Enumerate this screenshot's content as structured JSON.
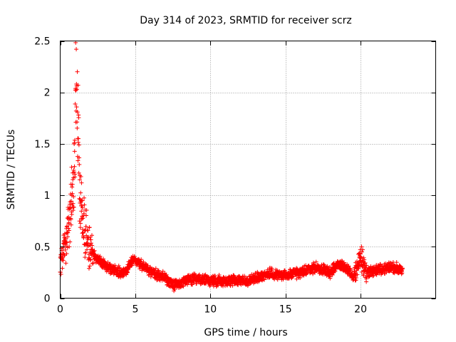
{
  "chart_data": {
    "type": "scatter",
    "title": "Day 314 of 2023, SRMTID for receiver scrz",
    "xlabel": "GPS time / hours",
    "ylabel": "SRMTID / TECUs",
    "xlim": [
      0,
      25
    ],
    "ylim": [
      0,
      2.5
    ],
    "x_ticks": [
      0,
      5,
      10,
      15,
      20
    ],
    "x_tick_labels": [
      "0",
      "5",
      "10",
      "15",
      "20"
    ],
    "y_ticks": [
      0,
      0.5,
      1,
      1.5,
      2,
      2.5
    ],
    "y_tick_labels": [
      "0",
      "0.5",
      "1",
      "1.5",
      "2",
      "2.5"
    ],
    "grid": true,
    "marker": "+",
    "series_color": "#ff0000",
    "series": [
      {
        "name": "scrz",
        "x_range": [
          0,
          22.8
        ],
        "sample_interval_hours": 0.01,
        "trend": [
          [
            0.0,
            0.35
          ],
          [
            0.3,
            0.5
          ],
          [
            0.6,
            0.75
          ],
          [
            0.9,
            1.1
          ],
          [
            1.0,
            1.5
          ],
          [
            1.05,
            2.3
          ],
          [
            1.15,
            1.8
          ],
          [
            1.3,
            1.0
          ],
          [
            1.6,
            0.7
          ],
          [
            2.0,
            0.45
          ],
          [
            2.5,
            0.38
          ],
          [
            3.0,
            0.32
          ],
          [
            3.5,
            0.28
          ],
          [
            4.0,
            0.25
          ],
          [
            4.5,
            0.28
          ],
          [
            4.8,
            0.38
          ],
          [
            5.2,
            0.35
          ],
          [
            5.6,
            0.3
          ],
          [
            6.0,
            0.26
          ],
          [
            6.5,
            0.22
          ],
          [
            7.0,
            0.2
          ],
          [
            7.5,
            0.12
          ],
          [
            8.0,
            0.14
          ],
          [
            8.5,
            0.18
          ],
          [
            9.0,
            0.19
          ],
          [
            10.0,
            0.17
          ],
          [
            11.0,
            0.17
          ],
          [
            12.0,
            0.18
          ],
          [
            12.5,
            0.16
          ],
          [
            13.0,
            0.2
          ],
          [
            14.0,
            0.24
          ],
          [
            15.0,
            0.22
          ],
          [
            16.0,
            0.25
          ],
          [
            17.0,
            0.3
          ],
          [
            18.0,
            0.25
          ],
          [
            18.5,
            0.33
          ],
          [
            19.0,
            0.3
          ],
          [
            19.5,
            0.2
          ],
          [
            20.0,
            0.4
          ],
          [
            20.4,
            0.25
          ],
          [
            21.0,
            0.27
          ],
          [
            22.0,
            0.3
          ],
          [
            22.8,
            0.28
          ]
        ],
        "noise_amplitude": 0.06
      }
    ]
  }
}
